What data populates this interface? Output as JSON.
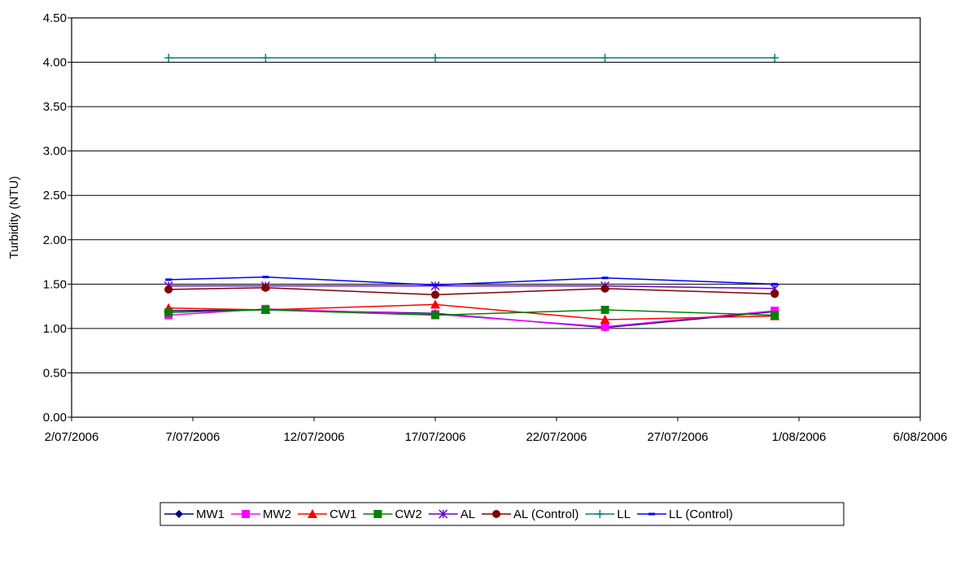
{
  "chart_data": {
    "type": "line",
    "title": "",
    "xlabel": "",
    "ylabel": "Turbidity (NTU)",
    "ylim": [
      0,
      4.5
    ],
    "yticks": [
      "0.00",
      "0.50",
      "1.00",
      "1.50",
      "2.00",
      "2.50",
      "3.00",
      "3.50",
      "4.00",
      "4.50"
    ],
    "xlim": [
      "2006-07-02",
      "2006-08-06"
    ],
    "xticks": [
      {
        "date": "2006-07-02",
        "label": "2/07/2006"
      },
      {
        "date": "2006-07-07",
        "label": "7/07/2006"
      },
      {
        "date": "2006-07-12",
        "label": "12/07/2006"
      },
      {
        "date": "2006-07-17",
        "label": "17/07/2006"
      },
      {
        "date": "2006-07-22",
        "label": "22/07/2006"
      },
      {
        "date": "2006-07-27",
        "label": "27/07/2006"
      },
      {
        "date": "2006-08-01",
        "label": "1/08/2006"
      },
      {
        "date": "2006-08-06",
        "label": "6/08/2006"
      }
    ],
    "x": [
      "2006-07-06",
      "2006-07-10",
      "2006-07-17",
      "2006-07-24",
      "2006-07-31"
    ],
    "grid": "horizontal",
    "legend_position": "bottom",
    "series": [
      {
        "name": "MW1",
        "color": "#000080",
        "marker": "diamond",
        "values": [
          1.2,
          1.21,
          1.17,
          1.01,
          1.19
        ]
      },
      {
        "name": "MW2",
        "color": "#FF00FF",
        "marker": "square",
        "values": [
          1.15,
          1.22,
          1.16,
          1.02,
          1.2
        ]
      },
      {
        "name": "CW1",
        "color": "#FF0000",
        "marker": "triangle",
        "values": [
          1.23,
          1.21,
          1.27,
          1.1,
          1.14
        ]
      },
      {
        "name": "CW2",
        "color": "#008000",
        "marker": "square",
        "values": [
          1.18,
          1.21,
          1.15,
          1.21,
          1.15
        ]
      },
      {
        "name": "AL",
        "color": "#6600CC",
        "marker": "star",
        "values": [
          1.48,
          1.48,
          1.48,
          1.48,
          1.45
        ]
      },
      {
        "name": "AL (Control)",
        "color": "#800000",
        "marker": "circle",
        "values": [
          1.44,
          1.46,
          1.38,
          1.45,
          1.39
        ]
      },
      {
        "name": "LL",
        "color": "#008080",
        "marker": "plus",
        "values": [
          4.05,
          4.05,
          4.05,
          4.05,
          4.05
        ]
      },
      {
        "name": "LL (Control)",
        "color": "#0000FF",
        "marker": "dash",
        "values": [
          1.55,
          1.58,
          1.49,
          1.57,
          1.5
        ]
      }
    ]
  }
}
